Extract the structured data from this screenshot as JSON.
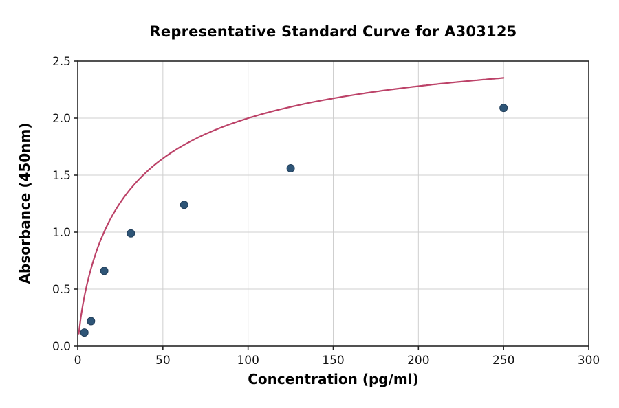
{
  "chart_data": {
    "type": "scatter",
    "title": "Representative Standard Curve for A303125",
    "xlabel": "Concentration (pg/ml)",
    "ylabel": "Absorbance (450nm)",
    "xlim": [
      0,
      300
    ],
    "ylim": [
      0,
      2.5
    ],
    "x_ticks": [
      0,
      50,
      100,
      150,
      200,
      250,
      300
    ],
    "x_tick_labels": [
      "0",
      "50",
      "100",
      "150",
      "200",
      "250",
      "300"
    ],
    "y_ticks": [
      0.0,
      0.5,
      1.0,
      1.5,
      2.0,
      2.5
    ],
    "y_tick_labels": [
      "0.0",
      "0.5",
      "1.0",
      "1.5",
      "2.0",
      "2.5"
    ],
    "grid": true,
    "legend": "none",
    "points": [
      {
        "x": 3.9,
        "y": 0.12
      },
      {
        "x": 7.8,
        "y": 0.22
      },
      {
        "x": 15.6,
        "y": 0.66
      },
      {
        "x": 31.2,
        "y": 0.99
      },
      {
        "x": 62.5,
        "y": 1.24
      },
      {
        "x": 125,
        "y": 1.56
      },
      {
        "x": 250,
        "y": 2.09
      }
    ],
    "curve": {
      "model": "hill",
      "a": 2.813,
      "b": 0.8,
      "c": 32.5,
      "x_start": 0.6,
      "x_end": 250,
      "color": "#bc4268"
    },
    "colors": {
      "point_fill": "#2e5577",
      "point_edge": "#23405c",
      "grid": "#cfcfcf",
      "spine": "#262626",
      "background": "#ffffff"
    }
  }
}
